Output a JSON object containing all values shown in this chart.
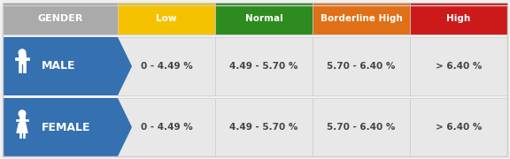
{
  "background_color": "#f0f0f0",
  "header_bg": "#aaaaaa",
  "header_text_color": "#ffffff",
  "header_label": "GENDER",
  "columns": [
    "Low",
    "Normal",
    "Borderline High",
    "High"
  ],
  "col_colors": [
    "#f5c200",
    "#2e8b20",
    "#e07018",
    "#cc1a1a"
  ],
  "col_text_color": "#ffffff",
  "row_labels": [
    "MALE",
    "FEMALE"
  ],
  "row_bg": "#3570b0",
  "row_bg_dark": "#2a5a95",
  "row_text_color": "#ffffff",
  "cell_bg": "#e8e8e8",
  "cell_text_color": "#444444",
  "male_ranges": [
    "0 - 4.49 %",
    "4.49 - 5.70 %",
    "5.70 - 6.40 %",
    "> 6.40 %"
  ],
  "female_ranges": [
    "0 - 4.49 %",
    "4.49 - 5.70 %",
    "5.70 - 6.40 %",
    "> 6.40 %"
  ],
  "border_color": "#cccccc",
  "figw": 5.76,
  "figh": 1.8,
  "dpi": 100
}
